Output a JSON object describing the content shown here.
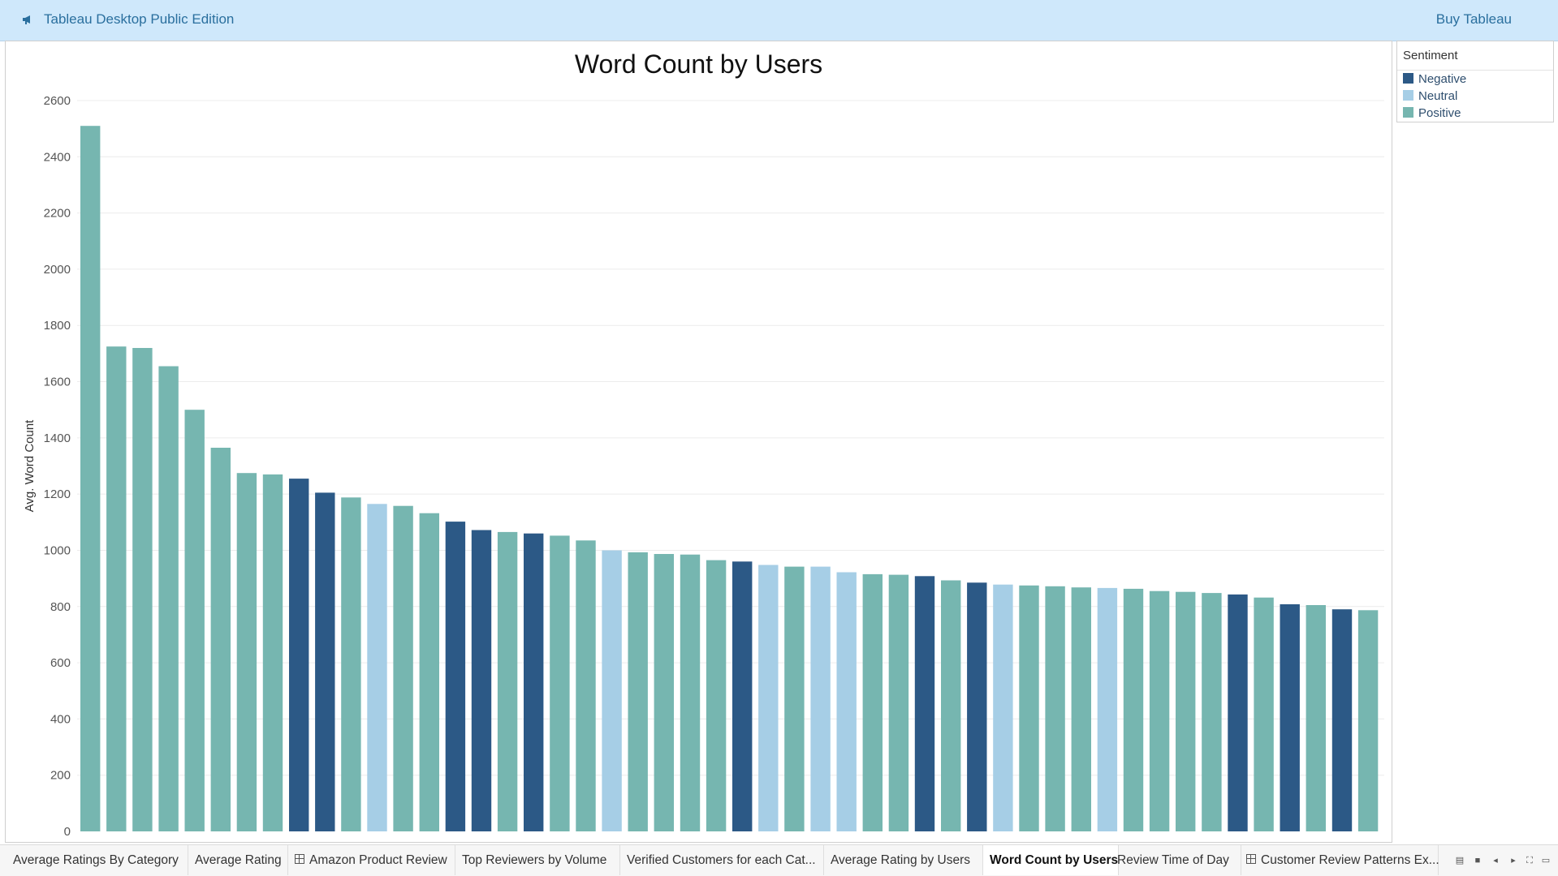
{
  "app": {
    "title": "Tableau Desktop Public Edition",
    "buy_label": "Buy Tableau"
  },
  "legend": {
    "title": "Sentiment",
    "items": [
      {
        "label": "Negative",
        "color": "#2c5986"
      },
      {
        "label": "Neutral",
        "color": "#a6cee6"
      },
      {
        "label": "Positive",
        "color": "#76b6b0"
      }
    ]
  },
  "tabs": [
    {
      "label": "Average Ratings By Category",
      "icon": ""
    },
    {
      "label": "Average Rating",
      "icon": ""
    },
    {
      "label": "Amazon Product Review",
      "icon": "dashboard-icon"
    },
    {
      "label": "Top Reviewers by Volume",
      "icon": ""
    },
    {
      "label": "Verified Customers for each Cat...",
      "icon": ""
    },
    {
      "label": "Average Rating by Users",
      "icon": ""
    },
    {
      "label": "Word Count by Users",
      "icon": "",
      "active": true
    },
    {
      "label": "Review Time of Day",
      "icon": ""
    },
    {
      "label": "Customer Review Patterns Ex...",
      "icon": "dashboard-icon"
    }
  ],
  "chart_data": {
    "type": "bar",
    "title": "Word Count by Users",
    "xlabel": "",
    "ylabel": "Avg. Word Count",
    "ylim": [
      0,
      2600
    ],
    "yticks": [
      0,
      200,
      400,
      600,
      800,
      1000,
      1200,
      1400,
      1600,
      1800,
      2000,
      2200,
      2400,
      2600
    ],
    "grid": true,
    "legend_position": "right",
    "colors": {
      "Negative": "#2c5986",
      "Neutral": "#a6cee6",
      "Positive": "#76b6b0"
    },
    "values": [
      2510,
      1725,
      1720,
      1655,
      1500,
      1365,
      1275,
      1270,
      1255,
      1205,
      1188,
      1165,
      1158,
      1132,
      1102,
      1072,
      1065,
      1060,
      1052,
      1035,
      1000,
      993,
      987,
      985,
      965,
      960,
      948,
      942,
      942,
      922,
      915,
      913,
      908,
      893,
      885,
      878,
      875,
      872,
      868,
      866,
      863,
      855,
      852,
      848,
      843,
      832,
      808,
      805,
      790,
      787
    ],
    "sentiment": [
      "Positive",
      "Positive",
      "Positive",
      "Positive",
      "Positive",
      "Positive",
      "Positive",
      "Positive",
      "Negative",
      "Negative",
      "Positive",
      "Neutral",
      "Positive",
      "Positive",
      "Negative",
      "Negative",
      "Positive",
      "Negative",
      "Positive",
      "Positive",
      "Neutral",
      "Positive",
      "Positive",
      "Positive",
      "Positive",
      "Negative",
      "Neutral",
      "Positive",
      "Neutral",
      "Neutral",
      "Positive",
      "Positive",
      "Negative",
      "Positive",
      "Negative",
      "Neutral",
      "Positive",
      "Positive",
      "Positive",
      "Neutral",
      "Positive",
      "Positive",
      "Positive",
      "Positive",
      "Negative",
      "Positive",
      "Negative",
      "Positive",
      "Negative",
      "Positive"
    ]
  }
}
